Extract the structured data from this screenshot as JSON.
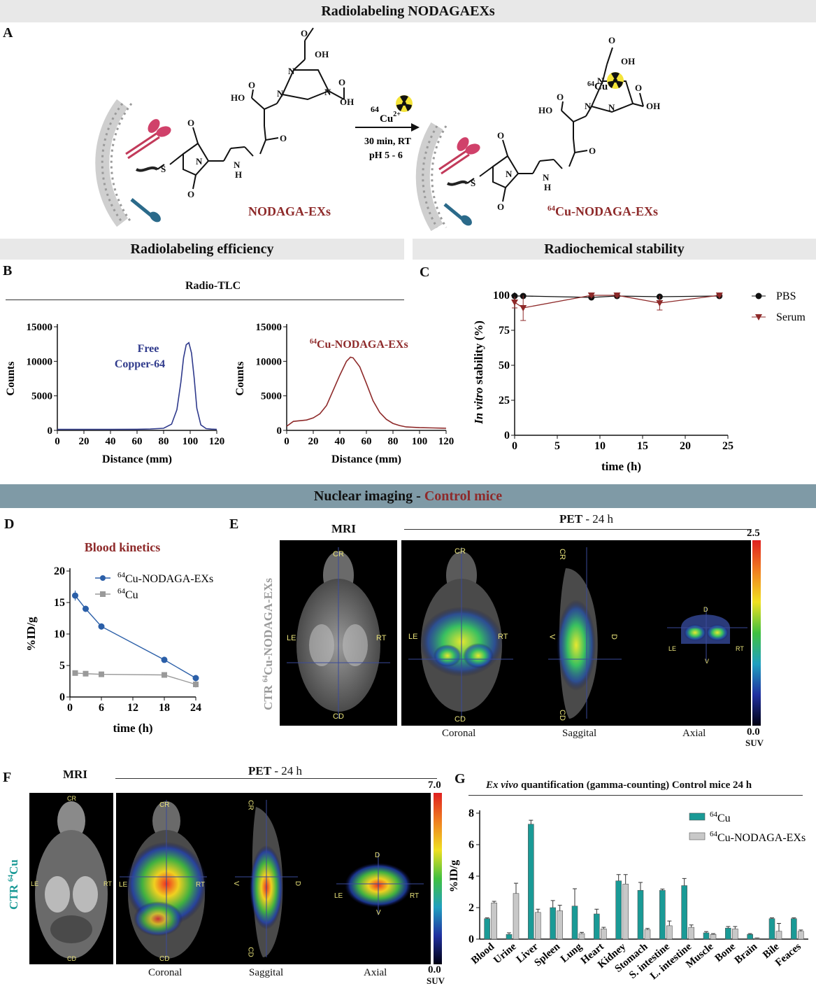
{
  "sections": {
    "top_title": "Radiolabeling NODAGAEXs",
    "efficiency_title": "Radiolabeling efficiency",
    "stability_title": "Radiochemical stability",
    "imaging_title_part1": "Nuclear imaging - ",
    "imaging_title_part2": "Control mice"
  },
  "panels": {
    "A": "A",
    "B": "B",
    "C": "C",
    "D": "D",
    "E": "E",
    "F": "F",
    "G": "G"
  },
  "scheme": {
    "reagent_isotope": "64",
    "reagent_element": "Cu",
    "reagent_charge": "2+",
    "condition_time": "30 min, RT",
    "condition_ph": "pH 5 - 6",
    "left_label": "NODAGA-EXs",
    "right_label_sup": "64",
    "right_label": "Cu-NODAGA-EXs",
    "oh_label": "OH",
    "ho_label": "HO",
    "o_label": "O",
    "n_label": "N",
    "h_label": "H",
    "s_label": "S",
    "cu_label": "Cu",
    "cu_sup": "64"
  },
  "panel_b": {
    "header": "Radio-TLC",
    "left_annotation_line1": "Free",
    "left_annotation_line2": "Copper-64",
    "right_annotation_sup": "64",
    "right_annotation": "Cu-NODAGA-EXs",
    "ylabel": "Counts",
    "xlabel": "Distance (mm)"
  },
  "panel_c": {
    "ylabel_italic": "In vitro",
    "ylabel_rest": " stability (%)",
    "xlabel": "time (h)",
    "legend_pbs": "PBS",
    "legend_serum": "Serum"
  },
  "panel_d": {
    "title": "Blood kinetics",
    "ylabel": "%ID/g",
    "xlabel": "time (h)",
    "legend_exs_sup": "64",
    "legend_exs": "Cu-NODAGA-EXs",
    "legend_cu_sup": "64",
    "legend_cu": "Cu"
  },
  "panel_e": {
    "mri_title": "MRI",
    "pet_title": "PET",
    "pet_time": " - 24 h",
    "side_label_pre": "CTR ",
    "side_label_sup": "64",
    "side_label_post": "Cu-NODAGA-EXs",
    "view_coronal": "Coronal",
    "view_saggital": "Saggital",
    "view_axial": "Axial",
    "scale_max": "2.5",
    "scale_min": "0.0",
    "scale_unit": "SUV",
    "orient": {
      "cr": "CR",
      "cd": "CD",
      "le": "LE",
      "rt": "RT",
      "v": "V",
      "d": "D"
    }
  },
  "panel_f": {
    "mri_title": "MRI",
    "pet_title": "PET",
    "pet_time": " - 24 h",
    "side_label_pre": "CTR ",
    "side_label_sup": "64",
    "side_label_post": "Cu",
    "view_coronal": "Coronal",
    "view_saggital": "Saggital",
    "view_axial": "Axial",
    "scale_max": "7.0",
    "scale_min": "0.0",
    "scale_unit": "SUV",
    "orient": {
      "cr": "CR",
      "cd": "CD",
      "le": "LE",
      "rt": "RT",
      "v": "V",
      "d": "D"
    }
  },
  "panel_g": {
    "title_italic": "Ex vivo",
    "title_rest": " quantification (gamma-counting)  Control mice 24 h",
    "ylabel": "%ID/g",
    "legend_cu_sup": "64",
    "legend_cu": "Cu",
    "legend_exs_sup": "64",
    "legend_exs": "Cu-NODAGA-EXs"
  },
  "colors": {
    "band": "#e8e8e8",
    "band_dark": "#7f9aa6",
    "maroon": "#8e2a2a",
    "navy": "#2f3a8c",
    "blue_series": "#2b5fa8",
    "gray_series": "#9a9a9a",
    "teal": "#1a9a96",
    "light_gray_bar": "#c8c8c8"
  },
  "chart_data": [
    {
      "id": "b_left",
      "type": "line",
      "xlim": [
        0,
        120
      ],
      "ylim": [
        0,
        15000
      ],
      "xticks": [
        0,
        20,
        40,
        60,
        80,
        100,
        120
      ],
      "yticks": [
        0,
        5000,
        10000,
        15000
      ],
      "x": [
        0,
        20,
        40,
        60,
        70,
        80,
        86,
        90,
        93,
        95,
        97,
        99,
        101,
        103,
        105,
        108,
        112,
        116,
        120
      ],
      "series": [
        {
          "values": [
            150,
            150,
            150,
            160,
            200,
            300,
            900,
            3000,
            7000,
            10500,
            12400,
            12700,
            11200,
            7600,
            3200,
            800,
            250,
            180,
            150
          ]
        }
      ]
    },
    {
      "id": "b_right",
      "type": "line",
      "xlim": [
        0,
        120
      ],
      "ylim": [
        0,
        15000
      ],
      "xticks": [
        0,
        20,
        40,
        60,
        80,
        100,
        120
      ],
      "yticks": [
        0,
        5000,
        10000,
        15000
      ],
      "x": [
        0,
        5,
        10,
        15,
        20,
        25,
        30,
        35,
        40,
        45,
        48,
        50,
        55,
        60,
        65,
        70,
        75,
        80,
        85,
        90,
        100,
        110,
        120
      ],
      "series": [
        {
          "values": [
            600,
            1300,
            1400,
            1500,
            1800,
            2400,
            3600,
            5800,
            8000,
            10000,
            10600,
            10500,
            9200,
            6800,
            4300,
            2600,
            1600,
            1000,
            700,
            500,
            400,
            350,
            300
          ]
        }
      ]
    },
    {
      "id": "c",
      "type": "line",
      "xlim": [
        0,
        25
      ],
      "ylim": [
        0,
        100
      ],
      "xticks": [
        0,
        5,
        10,
        15,
        20,
        25
      ],
      "yticks": [
        0,
        25,
        50,
        75,
        100
      ],
      "series": [
        {
          "name": "PBS",
          "x": [
            0,
            1,
            9,
            12,
            17,
            24
          ],
          "values": [
            99.5,
            99.5,
            98.5,
            99.5,
            99,
            99.5
          ],
          "err": [
            0.5,
            0.5,
            0.5,
            0.5,
            0.5,
            0.5
          ]
        },
        {
          "name": "Serum",
          "x": [
            0,
            1,
            9,
            12,
            17,
            24
          ],
          "values": [
            95,
            91,
            100,
            100,
            94.5,
            100
          ],
          "err": [
            4,
            9,
            1,
            1,
            5,
            0.5
          ]
        }
      ]
    },
    {
      "id": "d",
      "type": "line",
      "title": "Blood kinetics",
      "xlabel": "time (h)",
      "ylabel": "%ID/g",
      "xlim": [
        0,
        24
      ],
      "ylim": [
        0,
        20
      ],
      "xticks": [
        0,
        6,
        12,
        18,
        24
      ],
      "yticks": [
        0,
        5,
        10,
        15,
        20
      ],
      "series": [
        {
          "name": "64Cu-NODAGA-EXs",
          "x": [
            1,
            3,
            6,
            18,
            24
          ],
          "values": [
            16.1,
            14,
            11.2,
            5.9,
            3
          ],
          "err": [
            0.8,
            0.5,
            0.5,
            0.4,
            0.5
          ]
        },
        {
          "name": "64Cu",
          "x": [
            1,
            3,
            6,
            18,
            24
          ],
          "values": [
            3.8,
            3.7,
            3.6,
            3.5,
            2
          ],
          "err": [
            0.1,
            0.1,
            0.1,
            0.1,
            0.5
          ]
        }
      ]
    },
    {
      "id": "g",
      "type": "bar",
      "ylabel": "%ID/g",
      "ylim": [
        0,
        8
      ],
      "yticks": [
        0,
        2,
        4,
        6,
        8
      ],
      "categories": [
        "Blood",
        "Urine",
        "Liver",
        "Spleen",
        "Lung",
        "Heart",
        "Kidney",
        "Stomach",
        "S. intestine",
        "L. intestine",
        "Muscle",
        "Bone",
        "Brain",
        "Bile",
        "Feaces"
      ],
      "series": [
        {
          "name": "64Cu",
          "values": [
            1.3,
            0.3,
            7.3,
            2.0,
            2.1,
            1.6,
            3.7,
            3.1,
            3.1,
            3.4,
            0.4,
            0.7,
            0.3,
            1.3,
            1.3
          ],
          "err": [
            0.05,
            0.1,
            0.25,
            0.45,
            1.1,
            0.3,
            0.4,
            0.5,
            0.08,
            0.45,
            0.08,
            0.1,
            0.05,
            0.05,
            0.05
          ]
        },
        {
          "name": "64Cu-NODAGA-EXs",
          "values": [
            2.3,
            2.9,
            1.7,
            1.8,
            0.35,
            0.65,
            3.5,
            0.6,
            0.85,
            0.75,
            0.3,
            0.65,
            0.05,
            0.5,
            0.5
          ],
          "err": [
            0.1,
            0.65,
            0.2,
            0.35,
            0.08,
            0.1,
            0.6,
            0.08,
            0.3,
            0.15,
            0.05,
            0.15,
            0.02,
            0.5,
            0.08
          ]
        }
      ]
    }
  ]
}
